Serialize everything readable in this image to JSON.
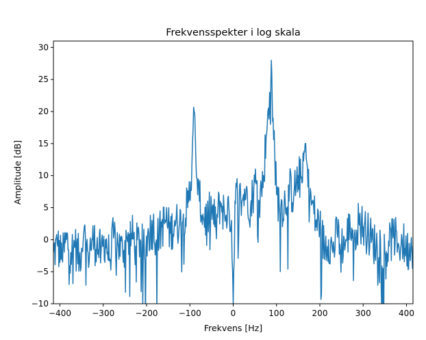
{
  "chart_data": {
    "type": "line",
    "title": "Frekvensspekter i log skala",
    "xlabel": "Frekvens [Hz]",
    "ylabel": "Amplitude [dB]",
    "xlim": [
      -415,
      415
    ],
    "ylim": [
      -10,
      31
    ],
    "xticks": [
      -400,
      -300,
      -200,
      -100,
      0,
      100,
      200,
      300,
      400
    ],
    "xtick_labels": [
      "−400",
      "−300",
      "−200",
      "−100",
      "0",
      "100",
      "200",
      "300",
      "400"
    ],
    "yticks": [
      -10,
      -5,
      0,
      5,
      10,
      15,
      20,
      25,
      30
    ],
    "ytick_labels": [
      "−10",
      "−5",
      "0",
      "5",
      "10",
      "15",
      "20",
      "25",
      "30"
    ],
    "grid": false,
    "line_color": "#1f77b4",
    "series": [
      {
        "x": [
          -415,
          -405,
          -395,
          -385,
          -375,
          -365,
          -355,
          -345,
          -335,
          -325,
          -315,
          -305,
          -295,
          -285,
          -275,
          -265,
          -255,
          -245,
          -235,
          -225,
          -215,
          -205,
          -195,
          -185,
          -175,
          -165,
          -155,
          -145,
          -135,
          -125,
          -115,
          -105,
          -98,
          -94,
          -90,
          -86,
          -82,
          -78,
          -70,
          -60,
          -50,
          -40,
          -30,
          -20,
          -10,
          -4,
          0,
          4,
          10,
          20,
          30,
          40,
          50,
          60,
          70,
          76,
          80,
          84,
          86,
          88,
          90,
          92,
          96,
          100,
          110,
          120,
          130,
          140,
          150,
          160,
          166,
          170,
          174,
          178,
          182,
          190,
          200,
          210,
          220,
          230,
          240,
          250,
          260,
          270,
          280,
          290,
          300,
          310,
          320,
          330,
          340,
          350,
          360,
          370,
          380,
          390,
          400,
          410,
          415
        ],
        "y": [
          -2,
          -1,
          -3,
          0,
          -2,
          -1,
          -3,
          1,
          -2,
          0,
          -1,
          -2,
          0,
          -3,
          1,
          -1,
          -2,
          0,
          1,
          -1,
          0,
          -2,
          1,
          2,
          0,
          2,
          3,
          1,
          3,
          2,
          4,
          5,
          9,
          15,
          20,
          12,
          7,
          6,
          4,
          3,
          5,
          2,
          6,
          4,
          5,
          3,
          -10,
          6,
          7,
          6,
          8,
          5,
          9,
          6,
          10,
          16,
          20,
          23,
          18,
          28,
          22,
          19,
          13,
          7,
          5,
          6,
          8,
          7,
          10,
          9,
          15,
          12,
          11,
          8,
          6,
          3,
          2,
          -1,
          0,
          -2,
          1,
          -1,
          0,
          2,
          1,
          3,
          2,
          1,
          0,
          -1,
          0,
          -2,
          -1,
          1,
          -1,
          0,
          -2,
          -1,
          -1
        ]
      }
    ]
  }
}
